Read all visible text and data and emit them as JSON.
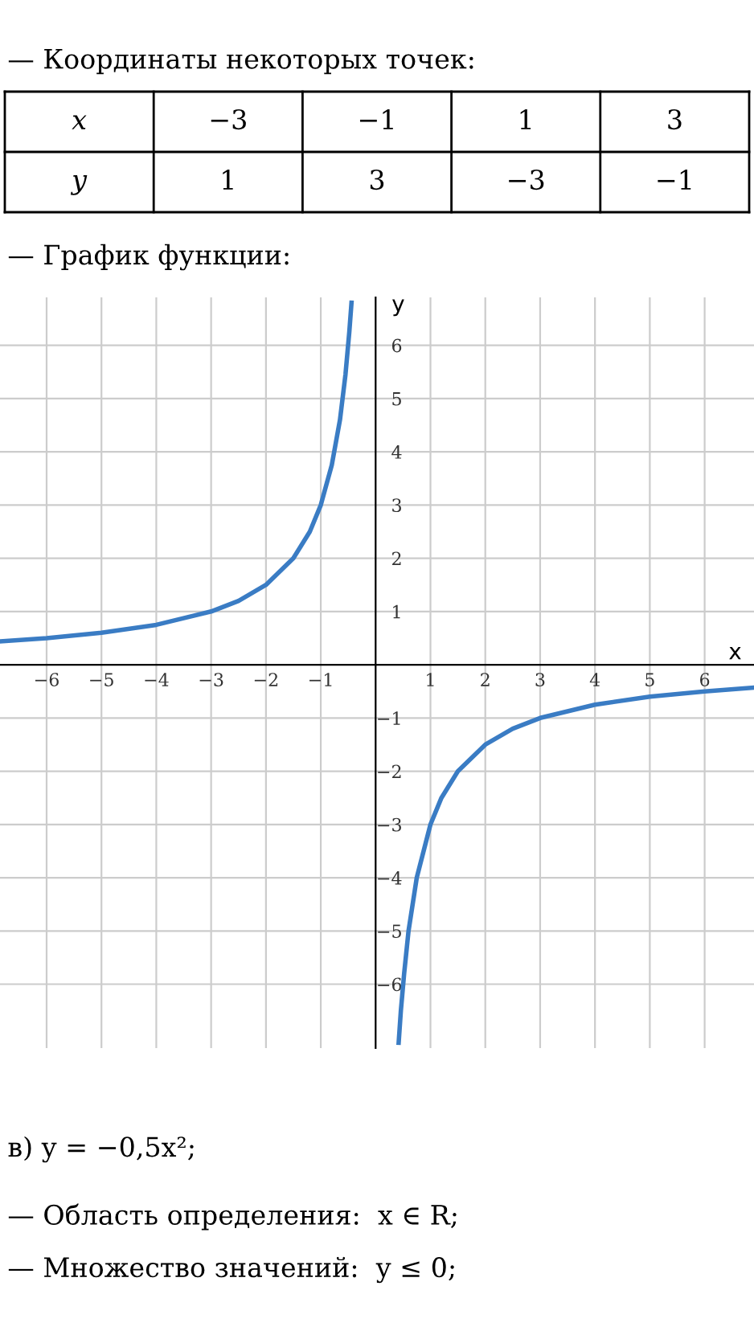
{
  "chart_data": {
    "type": "line",
    "xlabel": "x",
    "ylabel": "y",
    "x": [
      -6.85,
      -6,
      -5,
      -4,
      -3,
      -2.5,
      -2,
      -1.5,
      -1.2,
      -1,
      -0.8,
      -0.65,
      -0.55,
      -0.48,
      -0.44,
      null,
      0.42,
      0.46,
      0.52,
      0.6,
      0.75,
      1,
      1.2,
      1.5,
      2,
      2.5,
      3,
      4,
      5,
      6,
      6.9
    ],
    "series": [
      {
        "color": "#3a7cc4",
        "values": [
          0.44,
          0.5,
          0.6,
          0.75,
          1,
          1.2,
          1.5,
          2,
          2.5,
          3,
          3.75,
          4.6,
          5.45,
          6.25,
          6.8,
          null,
          -7.1,
          -6.5,
          -5.8,
          -5,
          -4,
          -3,
          -2.5,
          -2,
          -1.5,
          -1.2,
          -1,
          -0.75,
          -0.6,
          -0.5,
          -0.43
        ]
      }
    ],
    "xlim": [
      -6.85,
      6.9
    ],
    "ylim": [
      -7.2,
      6.9
    ],
    "xticks": [
      -6,
      -5,
      -4,
      -3,
      -2,
      -1,
      1,
      2,
      3,
      4,
      5,
      6
    ],
    "yticks": [
      -6,
      -5,
      -4,
      -3,
      -2,
      -1,
      1,
      2,
      3,
      4,
      5,
      6
    ],
    "grid": true,
    "marker": "none",
    "line_style": "solid",
    "annotations": [
      "— Координаты некоторых точек:",
      "x",
      "−3",
      "−1",
      "1",
      "3",
      "y",
      "1",
      "3",
      "−3",
      "−1",
      "— График функции:",
      "в) y = −0,5x²;",
      "— Область определения:  x ∈ R;",
      "— Множество значений:  y ≤ 0;"
    ]
  }
}
